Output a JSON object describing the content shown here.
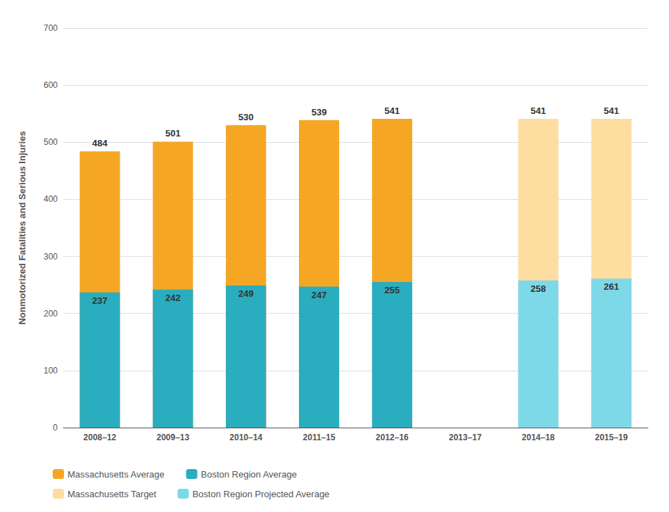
{
  "chart_data": {
    "type": "bar",
    "stacked": false,
    "categories": [
      "2008–12",
      "2009–13",
      "2010–14",
      "2011–15",
      "2012–16",
      "2013–17",
      "2014–18",
      "2015–19"
    ],
    "series": [
      {
        "name": "Massachusetts Average",
        "color": "#F5A623",
        "values": [
          484,
          501,
          530,
          539,
          541,
          null,
          null,
          null
        ]
      },
      {
        "name": "Boston Region Average",
        "color": "#2AADBE",
        "values": [
          237,
          242,
          249,
          247,
          255,
          null,
          null,
          null
        ]
      },
      {
        "name": "Massachusetts Target",
        "color": "#FDDDA0",
        "values": [
          null,
          null,
          null,
          null,
          null,
          null,
          541,
          541
        ]
      },
      {
        "name": "Boston Region Projected Average",
        "color": "#7DD8E8",
        "values": [
          null,
          null,
          null,
          null,
          null,
          null,
          258,
          261
        ]
      }
    ],
    "ylabel": "Nonmotorized Fatalities and Serious Injuries",
    "ylim": [
      0,
      700
    ],
    "yticks": [
      0,
      100,
      200,
      300,
      400,
      500,
      600,
      700
    ],
    "grid": true,
    "legend": "bottom",
    "data_labels": true
  }
}
